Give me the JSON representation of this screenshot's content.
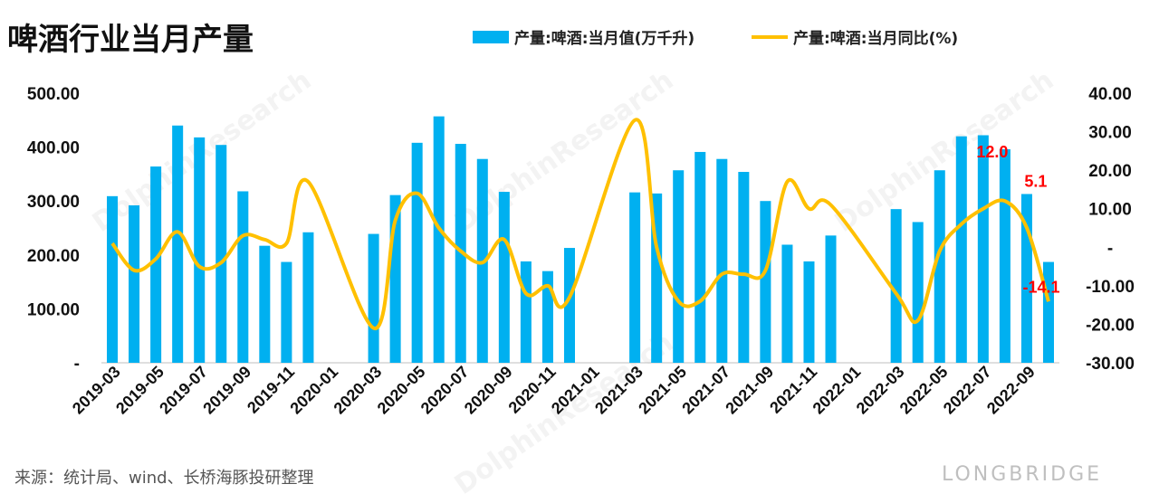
{
  "title": "啤酒行业当月产量",
  "source": "来源：统计局、wind、长桥海豚投研整理",
  "brand": "LONGBRIDGE",
  "watermarks": [
    "DolphinResearch",
    "DolphinResearch",
    "DolphinResearch",
    "DolphinResearch"
  ],
  "colors": {
    "bar": "#00b0f0",
    "line": "#ffc000",
    "annotation": "#ff0000"
  },
  "chart_data": {
    "type": "bar",
    "categories": [
      "2019-03",
      "2019-04",
      "2019-05",
      "2019-06",
      "2019-07",
      "2019-08",
      "2019-09",
      "2019-10",
      "2019-11",
      "2019-12",
      "2020-01",
      "2020-02",
      "2020-03",
      "2020-04",
      "2020-05",
      "2020-06",
      "2020-07",
      "2020-08",
      "2020-09",
      "2020-10",
      "2020-11",
      "2020-12",
      "2021-01",
      "2021-02",
      "2021-03",
      "2021-04",
      "2021-05",
      "2021-06",
      "2021-07",
      "2021-08",
      "2021-09",
      "2021-10",
      "2021-11",
      "2021-12",
      "2022-01",
      "2022-02",
      "2022-03",
      "2022-04",
      "2022-05",
      "2022-06",
      "2022-07",
      "2022-08",
      "2022-09",
      "2022-10"
    ],
    "tick_labels": [
      "2019-03",
      "2019-05",
      "2019-07",
      "2019-09",
      "2019-11",
      "2020-01",
      "2020-03",
      "2020-05",
      "2020-07",
      "2020-09",
      "2020-11",
      "2021-01",
      "2021-03",
      "2021-05",
      "2021-07",
      "2021-09",
      "2021-11",
      "2022-01",
      "2022-03",
      "2022-05",
      "2022-07",
      "2022-09"
    ],
    "series": [
      {
        "name": "产量:啤酒:当月值(万千升)",
        "type": "bar",
        "axis": "left",
        "values": [
          309,
          292,
          364,
          440,
          418,
          404,
          318,
          217,
          187,
          242,
          null,
          null,
          239,
          311,
          408,
          457,
          406,
          378,
          317,
          188,
          170,
          213,
          null,
          null,
          316,
          314,
          357,
          391,
          378,
          354,
          300,
          219,
          188,
          236,
          null,
          null,
          285,
          261,
          357,
          420,
          422,
          396,
          313,
          187
        ]
      },
      {
        "name": "产量:啤酒:当月同比(%)",
        "type": "line",
        "axis": "right",
        "values": [
          1,
          -6,
          -3,
          4,
          -5,
          -4,
          3,
          2,
          1,
          17,
          null,
          null,
          -21,
          7,
          14,
          5,
          -1,
          -4,
          2,
          -12,
          -10,
          -13,
          null,
          null,
          33,
          0,
          -14,
          -14,
          -7,
          -7,
          -6,
          17,
          10,
          11,
          null,
          null,
          -12,
          -19,
          -1,
          6,
          10,
          12,
          5.1,
          -14.1
        ]
      }
    ],
    "y_left": {
      "min": 0,
      "max": 500,
      "ticks": [
        "-",
        "100.00",
        "200.00",
        "300.00",
        "400.00",
        "500.00"
      ]
    },
    "y_right": {
      "min": -30,
      "max": 40,
      "ticks": [
        "-30.00",
        "-20.00",
        "-10.00",
        "-",
        "10.00",
        "20.00",
        "30.00",
        "40.00"
      ]
    },
    "annotations": [
      {
        "category": "2022-08",
        "text": "12.0"
      },
      {
        "category": "2022-09",
        "text": "5.1"
      },
      {
        "category": "2022-10",
        "text": "-14.1"
      }
    ],
    "legend_placement": "top-right",
    "grid": false
  }
}
